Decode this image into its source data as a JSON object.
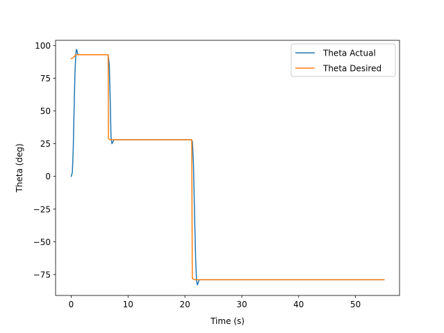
{
  "chart_data": {
    "type": "line",
    "title": "",
    "xlabel": "Time (s)",
    "ylabel": "Theta (deg)",
    "xlim": [
      -2.75,
      57.75
    ],
    "ylim": [
      -91,
      104
    ],
    "xticks": [
      0,
      10,
      20,
      30,
      40,
      50
    ],
    "yticks": [
      -75,
      -50,
      -25,
      0,
      25,
      50,
      75,
      100
    ],
    "grid": false,
    "legend_position": "upper right",
    "series": [
      {
        "name": "Theta Actual",
        "color": "#1f77b4",
        "x": [
          0.0,
          0.2,
          0.35,
          0.5,
          0.65,
          0.8,
          0.9,
          1.0,
          1.1,
          1.25,
          1.5,
          2.0,
          3.0,
          4.0,
          5.0,
          6.0,
          6.5,
          6.7,
          6.85,
          7.0,
          7.15,
          7.3,
          7.5,
          7.8,
          8.5,
          10.0,
          15.0,
          20.0,
          21.0,
          21.3,
          21.5,
          21.7,
          21.9,
          22.05,
          22.2,
          22.35,
          22.5,
          23.0,
          25.0,
          30.0,
          40.0,
          50.0,
          55.0
        ],
        "y": [
          0,
          3,
          20,
          50,
          78,
          93,
          97,
          96.5,
          94,
          93,
          93,
          93,
          93,
          93,
          93,
          93,
          93,
          85,
          60,
          30,
          25,
          26,
          28,
          28,
          28,
          28,
          28,
          28,
          28,
          27,
          10,
          -30,
          -65,
          -80,
          -83,
          -81,
          -79,
          -79,
          -79,
          -79,
          -79,
          -79,
          -79
        ]
      },
      {
        "name": "Theta Desired",
        "color": "#ff7f0e",
        "x": [
          0.0,
          0.4,
          0.8,
          1.0,
          1.5,
          3.0,
          6.4,
          6.5,
          6.55,
          6.8,
          7.0,
          10.0,
          15.0,
          21.1,
          21.2,
          21.3,
          21.7,
          22.0,
          25.0,
          30.0,
          40.0,
          50.0,
          55.0
        ],
        "y": [
          90,
          91,
          93,
          93,
          93,
          93,
          93,
          93,
          29,
          28,
          28,
          28,
          28,
          28,
          28,
          -78,
          -79,
          -79,
          -79,
          -79,
          -79,
          -79,
          -79
        ]
      }
    ]
  }
}
